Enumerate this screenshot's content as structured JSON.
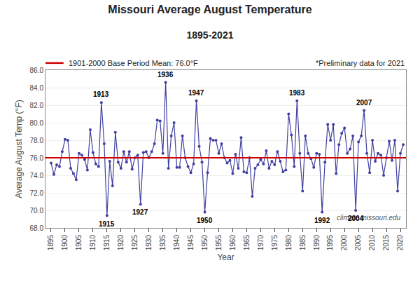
{
  "chart_data": {
    "type": "line",
    "title": "Missouri Average August Temperature",
    "subtitle": "1895-2021",
    "x_label": "Year",
    "y_label": "Average August Temp (°F)",
    "x": [
      1895,
      1896,
      1897,
      1898,
      1899,
      1900,
      1901,
      1902,
      1903,
      1904,
      1905,
      1906,
      1907,
      1908,
      1909,
      1910,
      1911,
      1912,
      1913,
      1914,
      1915,
      1916,
      1917,
      1918,
      1919,
      1920,
      1921,
      1922,
      1923,
      1924,
      1925,
      1926,
      1927,
      1928,
      1929,
      1930,
      1931,
      1932,
      1933,
      1934,
      1935,
      1936,
      1937,
      1938,
      1939,
      1940,
      1941,
      1942,
      1943,
      1944,
      1945,
      1946,
      1947,
      1948,
      1949,
      1950,
      1951,
      1952,
      1953,
      1954,
      1955,
      1956,
      1957,
      1958,
      1959,
      1960,
      1961,
      1962,
      1963,
      1964,
      1965,
      1966,
      1967,
      1968,
      1969,
      1970,
      1971,
      1972,
      1973,
      1974,
      1975,
      1976,
      1977,
      1978,
      1979,
      1980,
      1981,
      1982,
      1983,
      1984,
      1985,
      1986,
      1987,
      1988,
      1989,
      1990,
      1991,
      1992,
      1993,
      1994,
      1995,
      1996,
      1997,
      1998,
      1999,
      2000,
      2001,
      2002,
      2003,
      2004,
      2005,
      2006,
      2007,
      2008,
      2009,
      2010,
      2011,
      2012,
      2013,
      2014,
      2015,
      2016,
      2017,
      2018,
      2019,
      2020,
      2021
    ],
    "series": [
      {
        "color": "#4040a0",
        "marker": "circle",
        "values": [
          75.4,
          74.1,
          75.2,
          75.0,
          76.7,
          78.1,
          78.0,
          74.8,
          74.2,
          73.5,
          76.5,
          76.3,
          75.8,
          74.6,
          79.2,
          76.6,
          75.3,
          75.0,
          82.3,
          77.6,
          69.4,
          75.6,
          72.8,
          78.9,
          75.5,
          74.8,
          76.7,
          75.5,
          76.7,
          74.7,
          76.0,
          76.3,
          70.7,
          76.6,
          76.7,
          76.0,
          76.7,
          77.6,
          80.3,
          80.2,
          76.5,
          84.6,
          74.8,
          78.5,
          80.0,
          74.9,
          74.9,
          78.5,
          76.0,
          75.0,
          74.3,
          75.3,
          82.5,
          77.3,
          75.5,
          69.8,
          74.3,
          78.2,
          78.0,
          78.0,
          76.5,
          77.6,
          76.0,
          75.4,
          75.7,
          74.2,
          76.4,
          74.8,
          78.3,
          74.4,
          74.3,
          76.0,
          71.6,
          74.8,
          75.2,
          75.8,
          75.3,
          76.8,
          74.8,
          75.6,
          75.2,
          76.7,
          75.6,
          74.4,
          74.6,
          81.0,
          78.6,
          75.0,
          82.5,
          76.5,
          72.2,
          78.5,
          76.5,
          75.9,
          74.9,
          76.5,
          76.4,
          69.8,
          75.5,
          79.8,
          78.0,
          79.8,
          74.2,
          77.5,
          78.8,
          79.4,
          76.5,
          77.0,
          78.5,
          70.0,
          77.8,
          78.5,
          81.4,
          76.5,
          74.3,
          78.0,
          75.6,
          76.5,
          76.3,
          74.0,
          76.0,
          77.9,
          75.7,
          78.0,
          72.2,
          76.5,
          77.5
        ]
      }
    ],
    "reference_line": {
      "value": 76.0,
      "label": "1901-2000 Base Period Mean: 76.0°F",
      "color": "#cc0000"
    },
    "note": "*Preliminary data for 2021",
    "watermark": "climate.missouri.edu",
    "annotations": [
      {
        "x": 1913,
        "label": "1913"
      },
      {
        "x": 1915,
        "label": "1915"
      },
      {
        "x": 1927,
        "label": "1927"
      },
      {
        "x": 1936,
        "label": "1936"
      },
      {
        "x": 1947,
        "label": "1947"
      },
      {
        "x": 1950,
        "label": "1950"
      },
      {
        "x": 1983,
        "label": "1983"
      },
      {
        "x": 1992,
        "label": "1992"
      },
      {
        "x": 2004,
        "label": "2004"
      },
      {
        "x": 2007,
        "label": "2007"
      }
    ],
    "xlim": [
      1893,
      2022
    ],
    "xticks": [
      1895,
      1900,
      1905,
      1910,
      1915,
      1920,
      1925,
      1930,
      1935,
      1940,
      1945,
      1950,
      1955,
      1960,
      1965,
      1970,
      1975,
      1980,
      1985,
      1990,
      1995,
      2000,
      2005,
      2010,
      2015,
      2020
    ],
    "ylim": [
      68.0,
      86.0
    ],
    "yticks": [
      {
        "value": 68.0,
        "label": "68.0"
      },
      {
        "value": 70.0,
        "label": "70.0"
      },
      {
        "value": 72.0,
        "label": "72.0"
      },
      {
        "value": 74.0,
        "label": "74.0"
      },
      {
        "value": 76.0,
        "label": "76.0"
      },
      {
        "value": 78.0,
        "label": "78.0"
      },
      {
        "value": 80.0,
        "label": "80.0"
      },
      {
        "value": 82.0,
        "label": "82.0"
      },
      {
        "value": 84.0,
        "label": "84.0"
      },
      {
        "value": 86.0,
        "label": "86.0"
      }
    ],
    "grid": true
  }
}
